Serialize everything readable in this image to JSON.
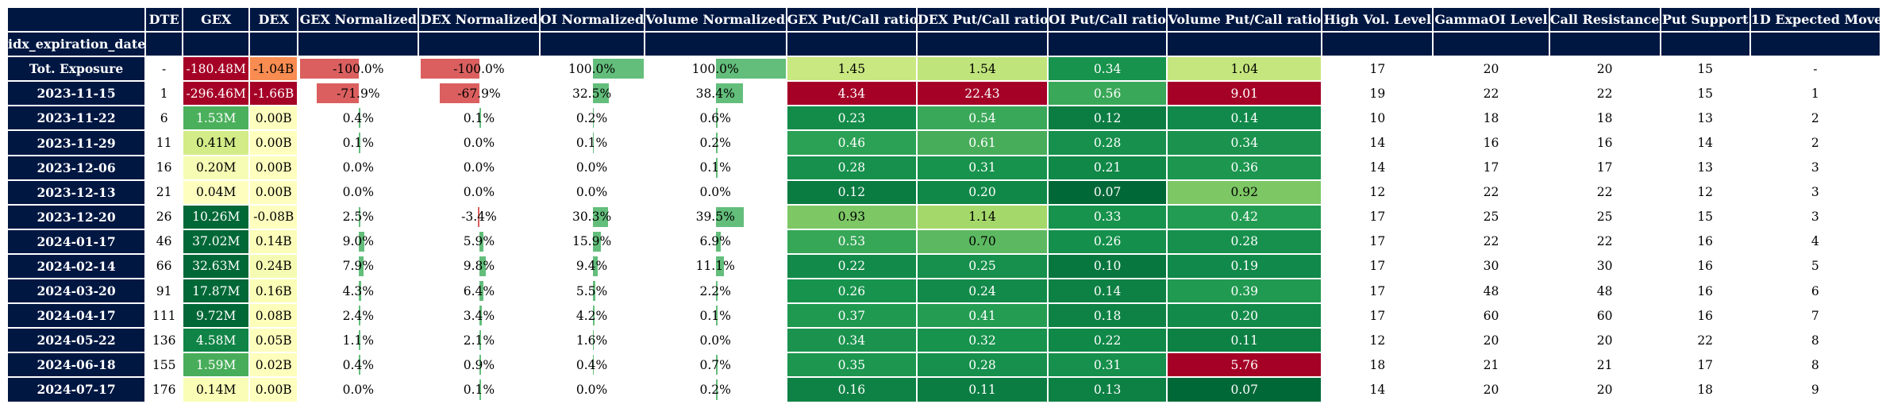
{
  "chart_data": {
    "type": "table",
    "index_name": "idx_expiration_date",
    "columns": [
      "DTE",
      "GEX",
      "DEX",
      "GEX Normalized",
      "DEX Normalized",
      "OI Normalized",
      "Volume Normalized",
      "GEX Put/Call ratio",
      "DEX Put/Call ratio",
      "OI Put/Call ratio",
      "Volume Put/Call ratio",
      "High Vol. Level",
      "GammaOI Level",
      "Call Resistance",
      "Put Support",
      "1D Expected Move"
    ],
    "column_styles": [
      "plain",
      "heat_gex",
      "heat_dex",
      "bar",
      "bar",
      "bar",
      "bar",
      "ratio",
      "ratio",
      "ratio",
      "ratio",
      "plain",
      "plain",
      "plain",
      "plain",
      "plain"
    ],
    "bar_values": {
      "3": [
        -100.0,
        -71.9,
        0.4,
        0.1,
        0.0,
        0.0,
        2.5,
        9.0,
        7.9,
        4.3,
        2.4,
        1.1,
        0.4,
        0.0
      ],
      "4": [
        -100.0,
        -67.9,
        0.1,
        0.0,
        0.0,
        0.0,
        -3.4,
        5.9,
        9.8,
        6.4,
        3.4,
        2.1,
        0.9,
        0.1
      ],
      "5": [
        100.0,
        32.5,
        0.2,
        0.1,
        0.0,
        0.0,
        30.3,
        15.9,
        9.4,
        5.5,
        4.2,
        1.6,
        0.4,
        0.0
      ],
      "6": [
        100.0,
        38.4,
        0.6,
        0.2,
        0.1,
        0.0,
        39.5,
        6.9,
        11.1,
        2.2,
        0.1,
        0.0,
        0.7,
        0.2
      ]
    },
    "rows": [
      {
        "label": "Tot. Exposure",
        "cells": [
          "-",
          "-180.48M",
          "-1.04B",
          "-100.0%",
          "-100.0%",
          "100.0%",
          "100.0%",
          "1.45",
          "1.54",
          "0.34",
          "1.04",
          "17",
          "20",
          "20",
          "15",
          "-"
        ],
        "colors": [
          "",
          "#a50026",
          "#f88c51",
          "",
          "",
          "",
          "",
          "#c9e881",
          "#c0e47c",
          "#17934d",
          "#c5e67e",
          "",
          "",
          "",
          "",
          ""
        ]
      },
      {
        "label": "2023-11-15",
        "cells": [
          "1",
          "-296.46M",
          "-1.66B",
          "-71.9%",
          "-67.9%",
          "32.5%",
          "38.4%",
          "4.34",
          "22.43",
          "0.56",
          "9.01",
          "19",
          "22",
          "22",
          "15",
          "1"
        ],
        "colors": [
          "",
          "#a50026",
          "#a50026",
          "",
          "",
          "",
          "",
          "#a50026",
          "#a50026",
          "#3aa859",
          "#a50026",
          "",
          "",
          "",
          "",
          ""
        ]
      },
      {
        "label": "2023-11-22",
        "cells": [
          "6",
          "1.53M",
          "0.00B",
          "0.4%",
          "0.1%",
          "0.2%",
          "0.6%",
          "0.23",
          "0.54",
          "0.12",
          "0.14",
          "10",
          "18",
          "18",
          "13",
          "2"
        ],
        "colors": [
          "",
          "#4bb05c",
          "#feffbe",
          "",
          "",
          "",
          "",
          "#138c4a",
          "#3aa859",
          "#0b7d42",
          "#11894a",
          "",
          "",
          "",
          "",
          ""
        ]
      },
      {
        "label": "2023-11-29",
        "cells": [
          "11",
          "0.41M",
          "0.00B",
          "0.1%",
          "0.0%",
          "0.1%",
          "0.2%",
          "0.46",
          "0.61",
          "0.28",
          "0.34",
          "14",
          "16",
          "16",
          "14",
          "2"
        ],
        "colors": [
          "",
          "#d3ec87",
          "#feffbe",
          "",
          "",
          "",
          "",
          "#2ba155",
          "#48ad5a",
          "#16904c",
          "#1b934e",
          "",
          "",
          "",
          "",
          ""
        ]
      },
      {
        "label": "2023-12-06",
        "cells": [
          "16",
          "0.20M",
          "0.00B",
          "0.0%",
          "0.0%",
          "0.0%",
          "0.1%",
          "0.28",
          "0.31",
          "0.21",
          "0.36",
          "14",
          "17",
          "17",
          "13",
          "3"
        ],
        "colors": [
          "",
          "#f7fcb4",
          "#feffbe",
          "",
          "",
          "",
          "",
          "#16904c",
          "#17934d",
          "#108848",
          "#1d964f",
          "",
          "",
          "",
          "",
          ""
        ]
      },
      {
        "label": "2023-12-13",
        "cells": [
          "21",
          "0.04M",
          "0.00B",
          "0.0%",
          "0.0%",
          "0.0%",
          "0.0%",
          "0.12",
          "0.20",
          "0.07",
          "0.92",
          "12",
          "22",
          "22",
          "12",
          "3"
        ],
        "colors": [
          "",
          "#feffbe",
          "#feffbe",
          "",
          "",
          "",
          "",
          "#0a7b41",
          "#108848",
          "#006837",
          "#7dc765",
          "",
          "",
          "",
          "",
          ""
        ]
      },
      {
        "label": "2023-12-20",
        "cells": [
          "26",
          "10.26M",
          "-0.08B",
          "2.5%",
          "-3.4%",
          "30.3%",
          "39.5%",
          "0.93",
          "1.14",
          "0.33",
          "0.42",
          "17",
          "25",
          "25",
          "15",
          "3"
        ],
        "colors": [
          "",
          "#006837",
          "#feffbe",
          "",
          "",
          "",
          "",
          "#7dc765",
          "#a5d86a",
          "#17934d",
          "#239c53",
          "",
          "",
          "",
          "",
          ""
        ]
      },
      {
        "label": "2024-01-17",
        "cells": [
          "46",
          "37.02M",
          "0.14B",
          "9.0%",
          "5.9%",
          "15.9%",
          "6.9%",
          "0.53",
          "0.70",
          "0.26",
          "0.28",
          "17",
          "22",
          "22",
          "16",
          "4"
        ],
        "colors": [
          "",
          "#006837",
          "#fbfdb8",
          "",
          "",
          "",
          "",
          "#36a657",
          "#5db961",
          "#14904c",
          "#16904c",
          "",
          "",
          "",
          "",
          ""
        ]
      },
      {
        "label": "2024-02-14",
        "cells": [
          "66",
          "32.63M",
          "0.24B",
          "7.9%",
          "9.8%",
          "9.4%",
          "11.1%",
          "0.22",
          "0.25",
          "0.10",
          "0.19",
          "17",
          "30",
          "30",
          "16",
          "5"
        ],
        "colors": [
          "",
          "#006837",
          "#f5fbb2",
          "",
          "",
          "",
          "",
          "#128a49",
          "#16904c",
          "#08773f",
          "#11894a",
          "",
          "",
          "",
          "",
          ""
        ]
      },
      {
        "label": "2024-03-20",
        "cells": [
          "91",
          "17.87M",
          "0.16B",
          "4.3%",
          "6.4%",
          "5.5%",
          "2.2%",
          "0.26",
          "0.24",
          "0.14",
          "0.39",
          "17",
          "48",
          "48",
          "16",
          "6"
        ],
        "colors": [
          "",
          "#006837",
          "#fafdb6",
          "",
          "",
          "",
          "",
          "#17934d",
          "#128a49",
          "#0d8044",
          "#219a51",
          "",
          "",
          "",
          "",
          ""
        ]
      },
      {
        "label": "2024-04-17",
        "cells": [
          "111",
          "9.72M",
          "0.08B",
          "2.4%",
          "3.4%",
          "4.2%",
          "0.1%",
          "0.37",
          "0.41",
          "0.18",
          "0.20",
          "17",
          "60",
          "60",
          "16",
          "7"
        ],
        "colors": [
          "",
          "#006837",
          "#fcfeba",
          "",
          "",
          "",
          "",
          "#1f9950",
          "#249d53",
          "#0e8245",
          "#128a49",
          "",
          "",
          "",
          "",
          ""
        ]
      },
      {
        "label": "2024-05-22",
        "cells": [
          "136",
          "4.58M",
          "0.05B",
          "1.1%",
          "2.1%",
          "1.6%",
          "0.0%",
          "0.34",
          "0.32",
          "0.22",
          "0.11",
          "12",
          "20",
          "20",
          "22",
          "8"
        ],
        "colors": [
          "",
          "#0f8446",
          "#fdfebc",
          "",
          "",
          "",
          "",
          "#1b934e",
          "#17934d",
          "#108848",
          "#0d8044",
          "",
          "",
          "",
          "",
          ""
        ]
      },
      {
        "label": "2024-06-18",
        "cells": [
          "155",
          "1.59M",
          "0.02B",
          "0.4%",
          "0.9%",
          "0.4%",
          "0.7%",
          "0.35",
          "0.28",
          "0.31",
          "5.76",
          "18",
          "21",
          "21",
          "17",
          "8"
        ],
        "colors": [
          "",
          "#48ad5a",
          "#fefebd",
          "",
          "",
          "",
          "",
          "#1d964f",
          "#16904c",
          "#16904c",
          "#a50026",
          "",
          "",
          "",
          "",
          ""
        ]
      },
      {
        "label": "2024-07-17",
        "cells": [
          "176",
          "0.14M",
          "0.00B",
          "0.0%",
          "0.1%",
          "0.0%",
          "0.2%",
          "0.16",
          "0.11",
          "0.13",
          "0.07",
          "14",
          "20",
          "20",
          "18",
          "9"
        ],
        "colors": [
          "",
          "#f9fdb5",
          "#feffbe",
          "",
          "",
          "",
          "",
          "#0e8245",
          "#0b7d42",
          "#0d8044",
          "#006837",
          "",
          "",
          "",
          "",
          ""
        ]
      }
    ]
  }
}
